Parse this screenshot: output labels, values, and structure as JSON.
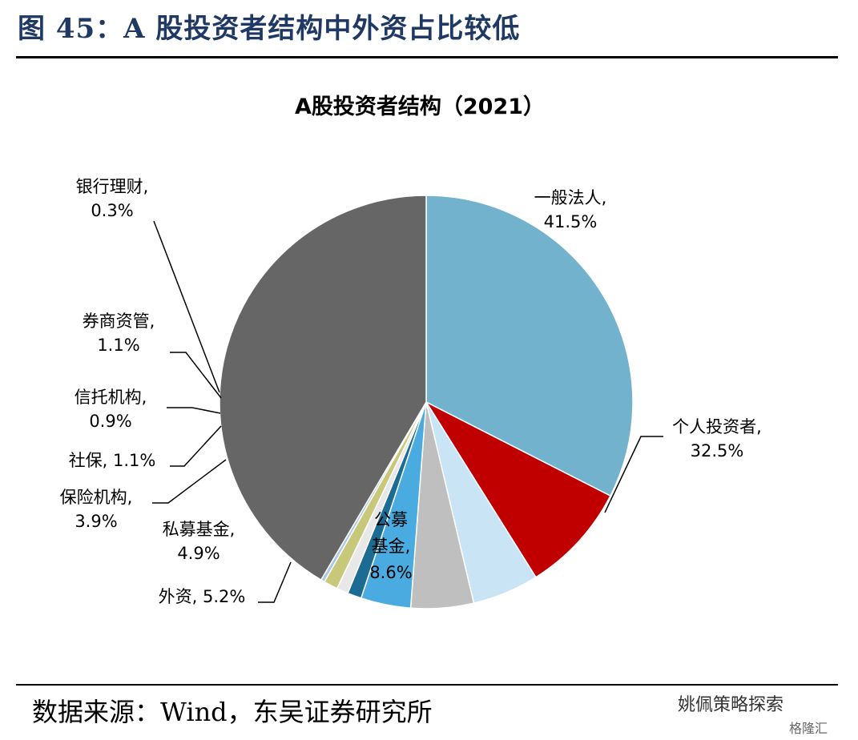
{
  "header": {
    "figure_title": "图 45：A 股投资者结构中外资占比较低"
  },
  "footer": {
    "source": "数据来源：Wind，东吴证券研究所",
    "watermark": "姚佩策略探索",
    "watermark2": "格隆汇"
  },
  "chart_data": {
    "type": "pie",
    "title": "A股投资者结构（2021）",
    "start_angle_deg": 90,
    "direction": "clockwise",
    "slices": [
      {
        "name": "个人投资者",
        "value": 32.5,
        "label_lines": [
          "个人投资者,",
          "32.5%"
        ],
        "color": "#73b2cd"
      },
      {
        "name": "公募基金",
        "value": 8.6,
        "label_lines": [
          "公募",
          "基金,",
          "8.6%"
        ],
        "color": "#c00000"
      },
      {
        "name": "外资",
        "value": 5.2,
        "label_lines": [
          "外资, 5.2%"
        ],
        "color": "#c9e4f5"
      },
      {
        "name": "私募基金",
        "value": 4.9,
        "label_lines": [
          "私募基金,",
          "4.9%"
        ],
        "color": "#bfbfbf"
      },
      {
        "name": "保险机构",
        "value": 3.9,
        "label_lines": [
          "保险机构,",
          "3.9%"
        ],
        "color": "#4aabe0"
      },
      {
        "name": "社保",
        "value": 1.1,
        "label_lines": [
          "社保, 1.1%"
        ],
        "color": "#1c6b93"
      },
      {
        "name": "信托机构",
        "value": 0.9,
        "label_lines": [
          "信托机构,",
          "0.9%"
        ],
        "color": "#e8e8e8"
      },
      {
        "name": "券商资管",
        "value": 1.1,
        "label_lines": [
          "券商资管,",
          "1.1%"
        ],
        "color": "#c7c87a"
      },
      {
        "name": "银行理财",
        "value": 0.3,
        "label_lines": [
          "银行理财,",
          "0.3%"
        ],
        "color": "#a9c8e6"
      },
      {
        "name": "一般法人",
        "value": 41.5,
        "label_lines": [
          "一般法人,",
          "41.5%"
        ],
        "color": "#666666"
      }
    ]
  }
}
